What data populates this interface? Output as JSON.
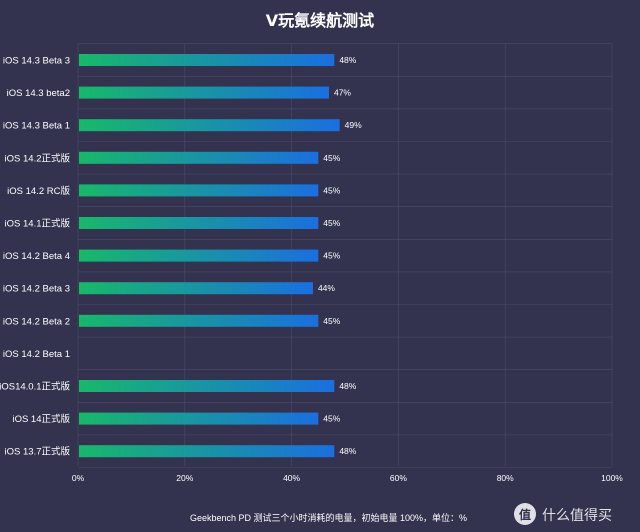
{
  "chart_data": {
    "type": "bar",
    "orientation": "horizontal",
    "title": "V玩氪续航测试",
    "categories": [
      "iOS 14.3 Beta 3",
      "iOS 14.3 beta2",
      "iOS 14.3 Beta 1",
      "iOS 14.2正式版",
      "iOS 14.2 RC版",
      "iOS 14.1正式版",
      "iOS 14.2 Beta 4",
      "iOS 14.2 Beta 3",
      "iOS 14.2 Beta 2",
      "iOS 14.2 Beta 1",
      "iOS14.0.1正式版",
      "iOS 14正式版",
      "iOS 13.7正式版"
    ],
    "values": [
      48,
      47,
      49,
      45,
      45,
      45,
      45,
      44,
      45,
      null,
      48,
      45,
      48
    ],
    "value_labels": [
      "48%",
      "47%",
      "49%",
      "45%",
      "45%",
      "45%",
      "45%",
      "44%",
      "45%",
      "",
      "48%",
      "45%",
      "48%"
    ],
    "xlim": [
      0,
      100
    ],
    "x_ticks": [
      0,
      20,
      40,
      60,
      80,
      100
    ],
    "x_tick_labels": [
      "0%",
      "20%",
      "40%",
      "60%",
      "80%",
      "100%"
    ],
    "grid": true,
    "note": "Geekbench PD 测试三个小时消耗的电量，初始电量 100%，单位：%",
    "colors": {
      "background": "#33334f",
      "bar_start": "#18b86a",
      "bar_end": "#1a6fe0",
      "grid": "#4b4b6a",
      "text": "#ffffff"
    }
  },
  "watermark": "什么值得买"
}
